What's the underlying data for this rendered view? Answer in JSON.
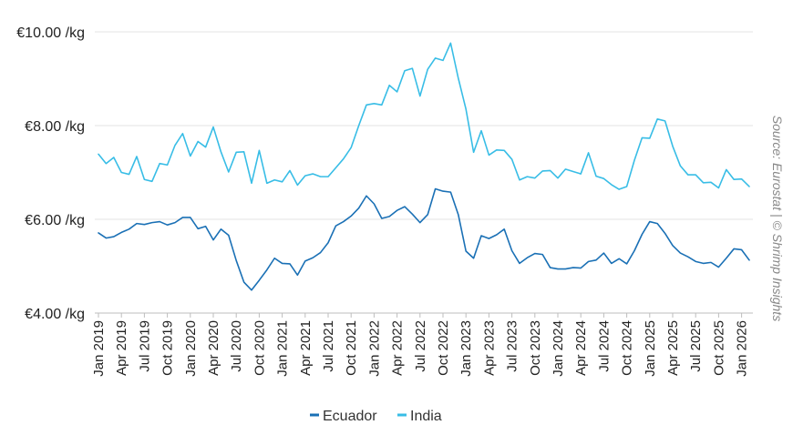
{
  "chart_data": {
    "type": "line",
    "source": "Source: Eurostat | © Shrimp Insights",
    "y_tick_labels": [
      "€10.00 /kg",
      "€8.00 /kg",
      "€6.00 /kg",
      "€4.00 /kg"
    ],
    "y_tick_values": [
      10,
      8,
      6,
      4
    ],
    "ylim": [
      4,
      10
    ],
    "grid": "horizontal",
    "legend_position": "bottom-center",
    "x_tick_labels": [
      "Jan 2019",
      "Apr 2019",
      "Jul 2019",
      "Oct 2019",
      "Jan 2020",
      "Apr 2020",
      "Jul 2020",
      "Oct 2020",
      "Jan 2021",
      "Apr 2021",
      "Jul 2021",
      "Oct 2021",
      "Jan 2022",
      "Apr 2022",
      "Jul 2022",
      "Oct 2022",
      "Jan 2023",
      "Apr 2023",
      "Jul 2023",
      "Oct 2023",
      "Jan 2024",
      "Apr 2024",
      "Jul 2024",
      "Oct 2024",
      "Jan 2025",
      "Apr 2025",
      "Jul 2025",
      "Oct 2025",
      "Jan 2026"
    ],
    "x_start": "2019-01",
    "series": [
      {
        "name": "Ecuador",
        "color": "#1a70b5",
        "values": [
          5.71,
          5.6,
          5.63,
          5.72,
          5.79,
          5.91,
          5.89,
          5.93,
          5.95,
          5.88,
          5.93,
          6.04,
          6.04,
          5.8,
          5.85,
          5.56,
          5.79,
          5.66,
          5.12,
          4.66,
          4.49,
          4.7,
          4.92,
          5.17,
          5.06,
          5.05,
          4.81,
          5.11,
          5.18,
          5.29,
          5.5,
          5.86,
          5.95,
          6.07,
          6.24,
          6.5,
          6.33,
          6.02,
          6.06,
          6.19,
          6.27,
          6.11,
          5.93,
          6.1,
          6.65,
          6.6,
          6.58,
          6.1,
          5.32,
          5.17,
          5.65,
          5.59,
          5.67,
          5.79,
          5.33,
          5.06,
          5.18,
          5.27,
          5.25,
          4.97,
          4.94,
          4.94,
          4.97,
          4.96,
          5.1,
          5.13,
          5.28,
          5.06,
          5.16,
          5.05,
          5.33,
          5.68,
          5.95,
          5.91,
          5.7,
          5.44,
          5.28,
          5.2,
          5.1,
          5.06,
          5.08,
          4.98,
          5.17,
          5.37,
          5.35,
          5.13
        ]
      },
      {
        "name": "India",
        "color": "#38bde6",
        "values": [
          7.39,
          7.19,
          7.32,
          7.0,
          6.96,
          7.34,
          6.85,
          6.81,
          7.19,
          7.16,
          7.58,
          7.83,
          7.35,
          7.66,
          7.54,
          7.97,
          7.44,
          7.01,
          7.43,
          7.44,
          6.77,
          7.47,
          6.77,
          6.84,
          6.8,
          7.04,
          6.73,
          6.93,
          6.97,
          6.91,
          6.91,
          7.1,
          7.29,
          7.53,
          8.0,
          8.44,
          8.47,
          8.44,
          8.86,
          8.72,
          9.17,
          9.22,
          8.63,
          9.2,
          9.44,
          9.39,
          9.76,
          9.01,
          8.35,
          7.43,
          7.89,
          7.37,
          7.48,
          7.47,
          7.28,
          6.84,
          6.91,
          6.88,
          7.03,
          7.04,
          6.88,
          7.07,
          7.02,
          6.97,
          7.42,
          6.92,
          6.87,
          6.74,
          6.64,
          6.7,
          7.26,
          7.74,
          7.73,
          8.14,
          8.1,
          7.56,
          7.14,
          6.95,
          6.95,
          6.78,
          6.79,
          6.67,
          7.06,
          6.85,
          6.86,
          6.7
        ]
      }
    ]
  }
}
